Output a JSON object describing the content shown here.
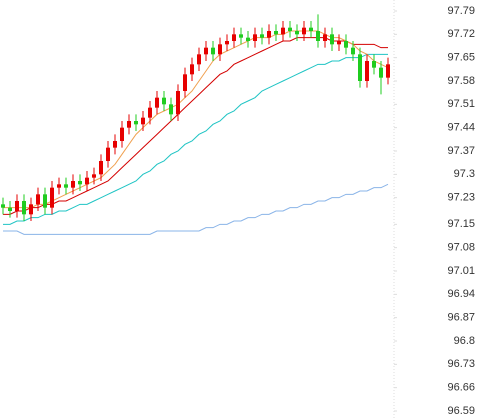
{
  "chart_data": {
    "type": "candlestick",
    "open": [
      97.21,
      97.2,
      97.19,
      97.22,
      97.18,
      97.21,
      97.24,
      97.2,
      97.26,
      97.27,
      97.26,
      97.28,
      97.27,
      97.29,
      97.3,
      97.34,
      97.38,
      97.4,
      97.44,
      97.46,
      97.45,
      97.47,
      97.5,
      97.53,
      97.51,
      97.48,
      97.55,
      97.6,
      97.63,
      97.66,
      97.68,
      97.66,
      97.69,
      97.7,
      97.72,
      97.71,
      97.7,
      97.72,
      97.71,
      97.73,
      97.72,
      97.74,
      97.73,
      97.72,
      97.74,
      97.73,
      97.7,
      97.72,
      97.69,
      97.7,
      97.68,
      97.66,
      97.58,
      97.64,
      97.62,
      97.59
    ],
    "high": [
      97.23,
      97.22,
      97.24,
      97.24,
      97.23,
      97.26,
      97.26,
      97.28,
      97.29,
      97.29,
      97.3,
      97.3,
      97.31,
      97.32,
      97.36,
      97.4,
      97.42,
      97.46,
      97.48,
      97.48,
      97.49,
      97.52,
      97.55,
      97.55,
      97.53,
      97.57,
      97.62,
      97.65,
      97.68,
      97.7,
      97.7,
      97.71,
      97.72,
      97.74,
      97.74,
      97.73,
      97.74,
      97.74,
      97.75,
      97.75,
      97.76,
      97.76,
      97.75,
      97.76,
      97.76,
      97.78,
      97.74,
      97.74,
      97.72,
      97.72,
      97.7,
      97.68,
      97.66,
      97.66,
      97.64,
      97.65
    ],
    "low": [
      97.18,
      97.17,
      97.17,
      97.16,
      97.16,
      97.19,
      97.18,
      97.18,
      97.24,
      97.24,
      97.24,
      97.25,
      97.25,
      97.27,
      97.28,
      97.32,
      97.36,
      97.38,
      97.42,
      97.43,
      97.43,
      97.45,
      97.48,
      97.49,
      97.46,
      97.46,
      97.53,
      97.58,
      97.61,
      97.64,
      97.64,
      97.64,
      97.67,
      97.68,
      97.69,
      97.68,
      97.68,
      97.69,
      97.69,
      97.7,
      97.7,
      97.71,
      97.7,
      97.7,
      97.71,
      97.68,
      97.68,
      97.67,
      97.67,
      97.66,
      97.64,
      97.56,
      97.56,
      97.6,
      97.54,
      97.57
    ],
    "close": [
      97.2,
      97.19,
      97.22,
      97.18,
      97.21,
      97.24,
      97.2,
      97.26,
      97.27,
      97.26,
      97.28,
      97.27,
      97.29,
      97.3,
      97.34,
      97.38,
      97.4,
      97.44,
      97.46,
      97.45,
      97.47,
      97.5,
      97.53,
      97.51,
      97.48,
      97.55,
      97.6,
      97.63,
      97.66,
      97.68,
      97.66,
      97.69,
      97.7,
      97.72,
      97.71,
      97.7,
      97.72,
      97.71,
      97.73,
      97.72,
      97.74,
      97.73,
      97.72,
      97.74,
      97.73,
      97.7,
      97.72,
      97.69,
      97.7,
      97.68,
      97.66,
      97.58,
      97.64,
      97.62,
      97.59,
      97.63
    ],
    "up_color": "#e60000",
    "down_color": "#1fcc1f",
    "series": [
      {
        "color": "#8ab4e8",
        "values": [
          97.13,
          97.13,
          97.13,
          97.12,
          97.12,
          97.12,
          97.12,
          97.12,
          97.12,
          97.12,
          97.12,
          97.12,
          97.12,
          97.12,
          97.12,
          97.12,
          97.12,
          97.12,
          97.12,
          97.12,
          97.12,
          97.12,
          97.13,
          97.13,
          97.13,
          97.13,
          97.13,
          97.13,
          97.13,
          97.14,
          97.14,
          97.15,
          97.15,
          97.16,
          97.16,
          97.17,
          97.17,
          97.18,
          97.18,
          97.19,
          97.19,
          97.2,
          97.2,
          97.21,
          97.21,
          97.22,
          97.22,
          97.23,
          97.23,
          97.24,
          97.24,
          97.25,
          97.25,
          97.26,
          97.26,
          97.27
        ]
      },
      {
        "color": "#1fc4c4",
        "values": [
          97.15,
          97.15,
          97.16,
          97.16,
          97.17,
          97.17,
          97.18,
          97.18,
          97.19,
          97.19,
          97.2,
          97.21,
          97.21,
          97.22,
          97.23,
          97.24,
          97.25,
          97.26,
          97.27,
          97.28,
          97.3,
          97.31,
          97.33,
          97.34,
          97.36,
          97.37,
          97.39,
          97.4,
          97.42,
          97.43,
          97.45,
          97.46,
          97.48,
          97.49,
          97.51,
          97.52,
          97.53,
          97.55,
          97.56,
          97.57,
          97.58,
          97.59,
          97.6,
          97.61,
          97.62,
          97.63,
          97.63,
          97.64,
          97.64,
          97.65,
          97.65,
          97.65,
          97.66,
          97.66,
          97.66,
          97.66
        ]
      },
      {
        "color": "#d40000",
        "values": [
          97.18,
          97.18,
          97.19,
          97.19,
          97.2,
          97.2,
          97.21,
          97.21,
          97.22,
          97.22,
          97.23,
          97.24,
          97.25,
          97.26,
          97.27,
          97.28,
          97.3,
          97.32,
          97.34,
          97.36,
          97.38,
          97.4,
          97.42,
          97.44,
          97.46,
          97.48,
          97.5,
          97.52,
          97.54,
          97.56,
          97.58,
          97.6,
          97.61,
          97.63,
          97.64,
          97.65,
          97.66,
          97.67,
          97.68,
          97.69,
          97.7,
          97.7,
          97.71,
          97.71,
          97.71,
          97.71,
          97.71,
          97.7,
          97.7,
          97.7,
          97.69,
          97.69,
          97.69,
          97.69,
          97.68,
          97.68
        ]
      },
      {
        "color": "#f0a050",
        "values": [
          97.2,
          97.2,
          97.2,
          97.2,
          97.2,
          97.21,
          97.21,
          97.22,
          97.23,
          97.24,
          97.25,
          97.26,
          97.27,
          97.28,
          97.29,
          97.31,
          97.33,
          97.36,
          97.39,
          97.42,
          97.44,
          97.46,
          97.48,
          97.49,
          97.5,
          97.51,
          97.53,
          97.55,
          97.58,
          97.61,
          97.64,
          97.66,
          97.67,
          97.68,
          97.69,
          97.7,
          97.71,
          97.71,
          97.71,
          97.72,
          97.72,
          97.73,
          97.73,
          97.73,
          97.73,
          97.73,
          97.72,
          97.71,
          97.71,
          97.7,
          97.69,
          97.67,
          97.66,
          97.64,
          97.63,
          97.62
        ]
      }
    ],
    "ylim": [
      96.566,
      97.823
    ],
    "yticks": [
      97.79,
      97.72,
      97.65,
      97.58,
      97.51,
      97.44,
      97.37,
      97.3,
      97.23,
      97.15,
      97.08,
      97.01,
      96.94,
      96.87,
      96.8,
      96.73,
      96.66,
      96.59
    ],
    "grid": false
  }
}
